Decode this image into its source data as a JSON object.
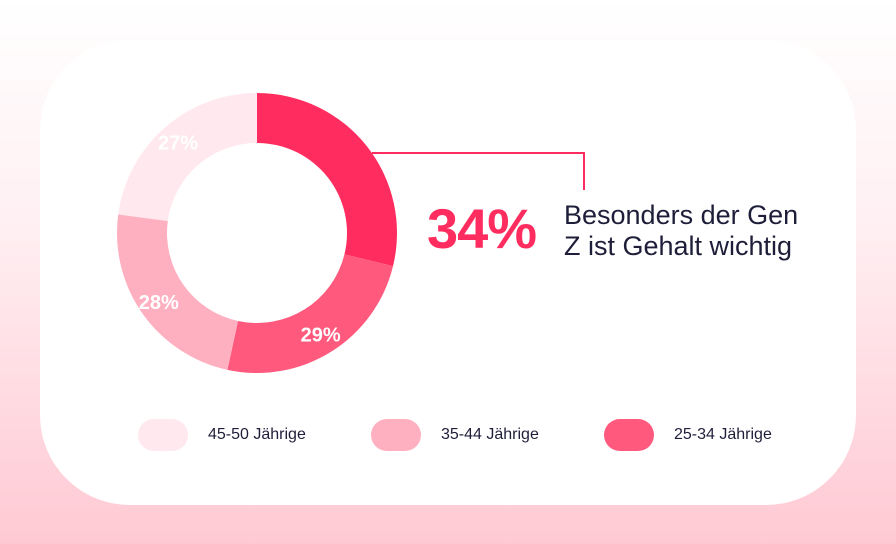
{
  "chart_data": {
    "type": "pie",
    "variant": "donut",
    "slices": [
      {
        "label": "34%",
        "value": 34,
        "color": "#ff2d5f"
      },
      {
        "label": "29%",
        "value": 29,
        "color": "#ff5a7e"
      },
      {
        "label": "28%",
        "value": 28,
        "color": "#ffb0c0"
      },
      {
        "label": "27%",
        "value": 27,
        "color": "#ffe8ee"
      }
    ],
    "highlight": {
      "value": "34%",
      "text": "Besonders der Gen Z ist Gehalt wichtig"
    },
    "legend": [
      {
        "label": "45-50 Jährige",
        "color": "#ffe8ee"
      },
      {
        "label": "35-44 Jährige",
        "color": "#ffb0c0"
      },
      {
        "label": "25-34 Jährige",
        "color": "#ff5a7e"
      }
    ],
    "legend_position": "bottom"
  }
}
